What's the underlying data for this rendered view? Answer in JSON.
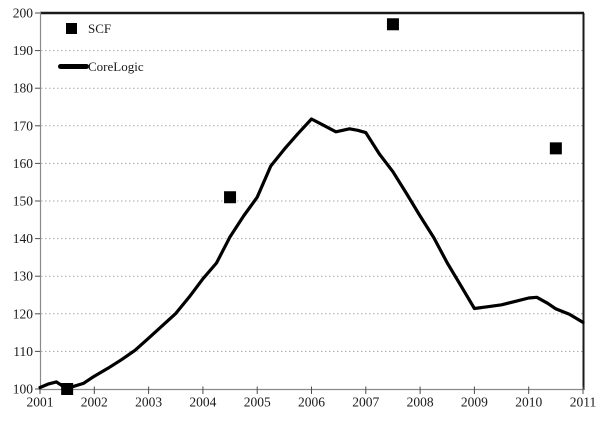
{
  "chart_data": {
    "type": "line+scatter",
    "title": "",
    "xlabel": "",
    "ylabel": "",
    "xlim": [
      2001,
      2011
    ],
    "ylim": [
      100,
      200
    ],
    "x_ticks": [
      2001,
      2002,
      2003,
      2004,
      2005,
      2006,
      2007,
      2008,
      2009,
      2010,
      2011
    ],
    "y_ticks": [
      100,
      110,
      120,
      130,
      140,
      150,
      160,
      170,
      180,
      190,
      200
    ],
    "grid": "horizontal-dotted",
    "legend_position": "top-left-inside",
    "series": [
      {
        "name": "SCF",
        "type": "scatter",
        "marker": "filled-square",
        "color": "#000000",
        "points": [
          [
            2001.5,
            100
          ],
          [
            2004.5,
            151
          ],
          [
            2007.5,
            197
          ],
          [
            2010.5,
            164
          ]
        ]
      },
      {
        "name": "CoreLogic",
        "type": "line",
        "color": "#000000",
        "points": [
          [
            2001.0,
            100.4
          ],
          [
            2001.15,
            101.3
          ],
          [
            2001.3,
            101.9
          ],
          [
            2001.45,
            100.5
          ],
          [
            2001.6,
            100.6
          ],
          [
            2001.8,
            101.5
          ],
          [
            2002.0,
            103.4
          ],
          [
            2002.25,
            105.5
          ],
          [
            2002.5,
            107.8
          ],
          [
            2002.75,
            110.3
          ],
          [
            2003.0,
            113.5
          ],
          [
            2003.25,
            116.8
          ],
          [
            2003.5,
            120.1
          ],
          [
            2003.75,
            124.5
          ],
          [
            2004.0,
            129.3
          ],
          [
            2004.25,
            133.5
          ],
          [
            2004.5,
            140.5
          ],
          [
            2004.75,
            146.0
          ],
          [
            2005.0,
            151.0
          ],
          [
            2005.25,
            159.3
          ],
          [
            2005.5,
            163.8
          ],
          [
            2005.75,
            167.9
          ],
          [
            2006.0,
            171.8
          ],
          [
            2006.2,
            170.3
          ],
          [
            2006.45,
            168.4
          ],
          [
            2006.7,
            169.2
          ],
          [
            2006.85,
            168.8
          ],
          [
            2007.0,
            168.2
          ],
          [
            2007.25,
            162.5
          ],
          [
            2007.5,
            157.8
          ],
          [
            2007.75,
            152.0
          ],
          [
            2008.0,
            146.0
          ],
          [
            2008.25,
            140.3
          ],
          [
            2008.5,
            133.5
          ],
          [
            2008.75,
            127.5
          ],
          [
            2009.0,
            121.4
          ],
          [
            2009.25,
            121.9
          ],
          [
            2009.5,
            122.4
          ],
          [
            2009.75,
            123.3
          ],
          [
            2010.0,
            124.2
          ],
          [
            2010.15,
            124.4
          ],
          [
            2010.35,
            122.8
          ],
          [
            2010.5,
            121.3
          ],
          [
            2010.75,
            119.9
          ],
          [
            2011.0,
            117.7
          ]
        ]
      }
    ]
  },
  "colors": {
    "background": "#ffffff",
    "axis_line": "#8a8a8a",
    "tick_mark": "#4d4d4d",
    "gridline": "#a8a8a8",
    "plot_border": "#1a1a1a",
    "label_text": "#1a1a1a",
    "series_color": "#000000"
  }
}
